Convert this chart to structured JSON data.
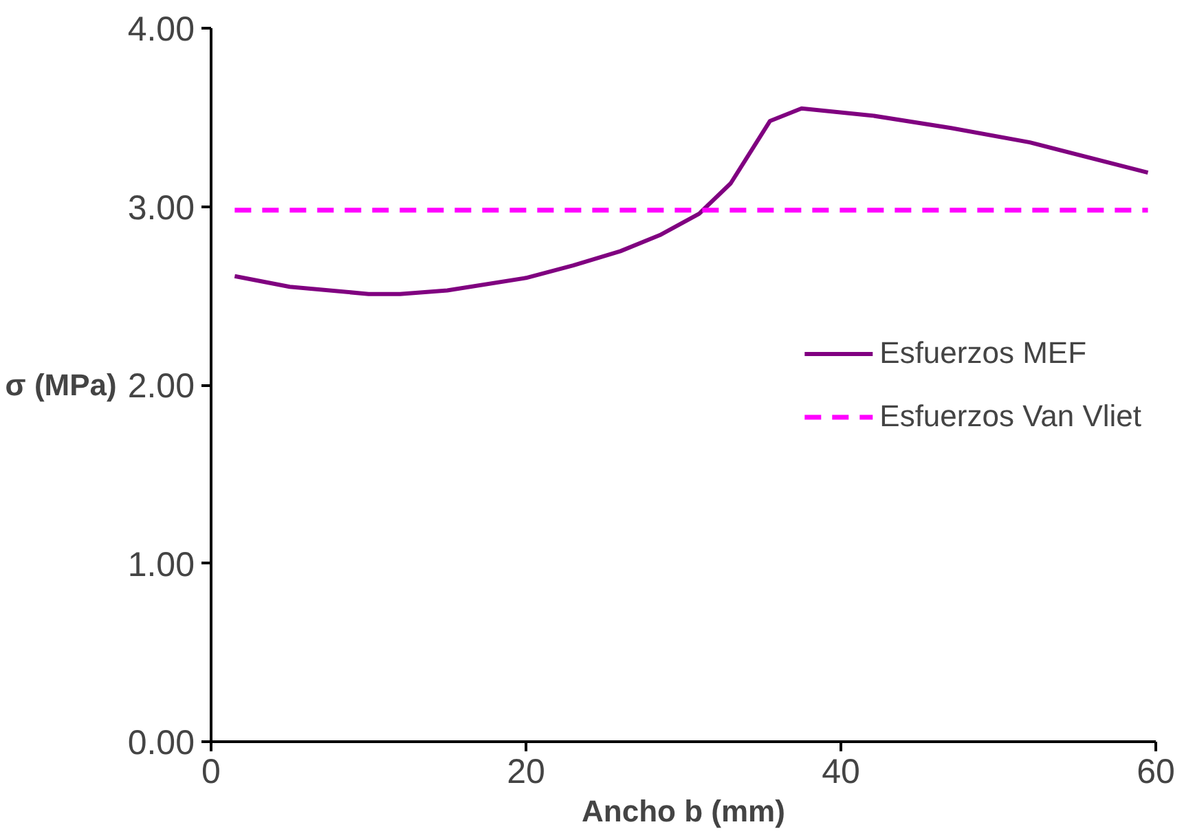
{
  "chart_data": {
    "type": "line",
    "xlabel": "Ancho b (mm)",
    "ylabel": "σ (MPa)",
    "xlim": [
      0,
      60
    ],
    "ylim": [
      0,
      4
    ],
    "xticks": [
      0,
      20,
      40,
      60
    ],
    "yticks": [
      {
        "value": 0,
        "label": "0.00"
      },
      {
        "value": 1,
        "label": "1.00"
      },
      {
        "value": 2,
        "label": "2.00"
      },
      {
        "value": 3,
        "label": "3.00"
      },
      {
        "value": 4,
        "label": "4.00"
      }
    ],
    "grid": false,
    "legend": "right",
    "marker": "none",
    "series": [
      {
        "name": "Esfuerzos MEF",
        "color": "#800080",
        "line_style": "solid",
        "x": [
          1.5,
          5,
          10,
          12,
          15,
          20,
          23,
          26,
          28.5,
          31,
          33,
          35.5,
          37.5,
          42,
          47,
          52,
          59.5
        ],
        "values": [
          2.61,
          2.55,
          2.51,
          2.51,
          2.53,
          2.6,
          2.67,
          2.75,
          2.84,
          2.96,
          3.13,
          3.48,
          3.55,
          3.51,
          3.44,
          3.36,
          3.19
        ]
      },
      {
        "name": "Esfuerzos Van Vliet",
        "color": "#ff00ff",
        "line_style": "dashed",
        "x": [
          1.5,
          59.5
        ],
        "values": [
          2.98,
          2.98
        ]
      }
    ]
  }
}
